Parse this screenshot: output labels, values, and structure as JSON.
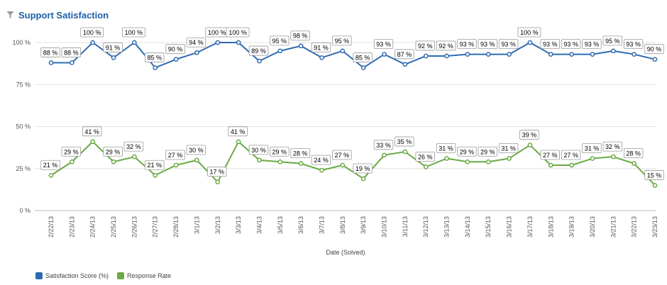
{
  "widget": {
    "title": "Support Satisfaction",
    "filter_icon": "filter-icon"
  },
  "colors": {
    "satisfaction": "#2e6bb0",
    "response": "#6aaa45",
    "grid": "#e3e3e3",
    "title": "#1f5fa8"
  },
  "chart_data": {
    "type": "line",
    "xlabel": "Date (Solved)",
    "ylabel": "",
    "ylim": [
      0,
      100
    ],
    "yticks": [
      0,
      25,
      50,
      75,
      100
    ],
    "ytick_labels": [
      "0 %",
      "25 %",
      "50 %",
      "75 %",
      "100 %"
    ],
    "grid": true,
    "legend_position": "bottom-left",
    "categories": [
      "2/22/13",
      "2/23/13",
      "2/24/13",
      "2/25/13",
      "2/26/13",
      "2/27/13",
      "2/28/13",
      "3/1/13",
      "3/2/13",
      "3/3/13",
      "3/4/13",
      "3/5/13",
      "3/6/13",
      "3/7/13",
      "3/8/13",
      "3/9/13",
      "3/10/13",
      "3/11/13",
      "3/12/13",
      "3/13/13",
      "3/14/13",
      "3/15/13",
      "3/16/13",
      "3/17/13",
      "3/18/13",
      "3/19/13",
      "3/20/13",
      "3/21/13",
      "3/22/13",
      "3/23/13"
    ],
    "series": [
      {
        "name": "Satisfaction Score (%)",
        "color": "#2e6bb0",
        "values": [
          88,
          88,
          100,
          91,
          100,
          85,
          90,
          94,
          100,
          100,
          89,
          95,
          98,
          91,
          95,
          85,
          93,
          87,
          92,
          92,
          93,
          93,
          93,
          100,
          93,
          93,
          93,
          95,
          93,
          90
        ]
      },
      {
        "name": "Response Rate",
        "color": "#6aaa45",
        "values": [
          21,
          29,
          41,
          29,
          32,
          21,
          27,
          30,
          17,
          41,
          30,
          29,
          28,
          24,
          27,
          19,
          33,
          35,
          26,
          31,
          29,
          29,
          31,
          39,
          27,
          27,
          31,
          32,
          28,
          15
        ]
      }
    ],
    "value_suffix": " %"
  }
}
